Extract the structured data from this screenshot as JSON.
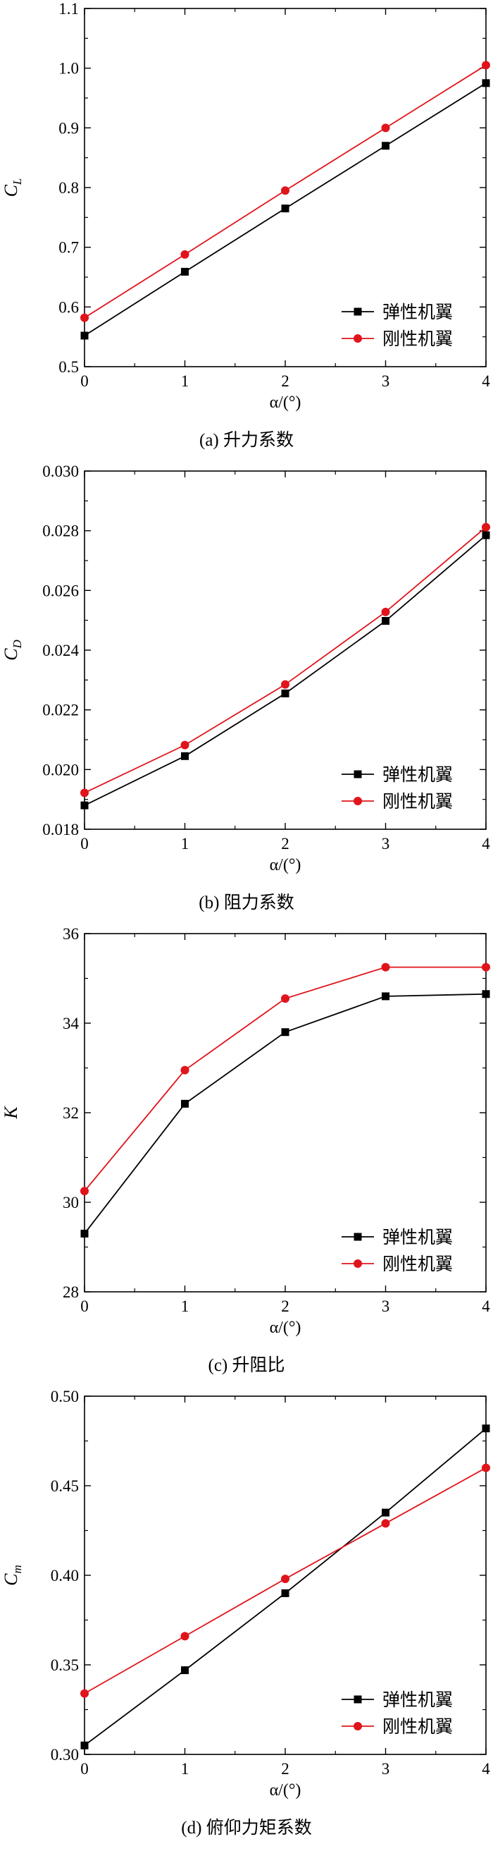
{
  "legend": {
    "elastic": "弹性机翼",
    "rigid": "刚性机翼"
  },
  "colors": {
    "elastic": "#000000",
    "rigid": "#e0141b",
    "axis": "#000000"
  },
  "chart_data": [
    {
      "type": "line",
      "caption": "(a) 升力系数",
      "xlabel": "α/(°)",
      "ylabel_main": "C",
      "ylabel_sub": "L",
      "xlim": [
        0,
        4
      ],
      "ylim": [
        0.5,
        1.1
      ],
      "xticks": [
        "0",
        "1",
        "2",
        "3",
        "4"
      ],
      "yticks": [
        "0.5",
        "0.6",
        "0.7",
        "0.8",
        "0.9",
        "1.0",
        "1.1"
      ],
      "x": [
        0,
        1,
        2,
        3,
        4
      ],
      "series": [
        {
          "name": "弹性机翼",
          "marker": "square",
          "values": [
            0.552,
            0.659,
            0.765,
            0.87,
            0.975
          ]
        },
        {
          "name": "刚性机翼",
          "marker": "circle",
          "values": [
            0.582,
            0.688,
            0.795,
            0.9,
            1.005
          ]
        }
      ],
      "legend_position": "bottom-right"
    },
    {
      "type": "line",
      "caption": "(b) 阻力系数",
      "xlabel": "α/(°)",
      "ylabel_main": "C",
      "ylabel_sub": "D",
      "xlim": [
        0,
        4
      ],
      "ylim": [
        0.018,
        0.03
      ],
      "xticks": [
        "0",
        "1",
        "2",
        "3",
        "4"
      ],
      "yticks": [
        "0.018",
        "0.020",
        "0.022",
        "0.024",
        "0.026",
        "0.028",
        "0.030"
      ],
      "x": [
        0,
        1,
        2,
        3,
        4
      ],
      "series": [
        {
          "name": "弹性机翼",
          "marker": "square",
          "values": [
            0.0188,
            0.02045,
            0.02255,
            0.02498,
            0.02785
          ]
        },
        {
          "name": "刚性机翼",
          "marker": "circle",
          "values": [
            0.01922,
            0.02082,
            0.02285,
            0.02528,
            0.02812
          ]
        }
      ],
      "legend_position": "bottom-right"
    },
    {
      "type": "line",
      "caption": "(c) 升阻比",
      "xlabel": "α/(°)",
      "ylabel_main": "K",
      "ylabel_sub": "",
      "xlim": [
        0,
        4
      ],
      "ylim": [
        28,
        36
      ],
      "xticks": [
        "0",
        "1",
        "2",
        "3",
        "4"
      ],
      "yticks": [
        "28",
        "30",
        "32",
        "34",
        "36"
      ],
      "x": [
        0,
        1,
        2,
        3,
        4
      ],
      "series": [
        {
          "name": "弹性机翼",
          "marker": "square",
          "values": [
            29.3,
            32.2,
            33.8,
            34.6,
            34.65
          ]
        },
        {
          "name": "刚性机翼",
          "marker": "circle",
          "values": [
            30.25,
            32.95,
            34.55,
            35.25,
            35.25
          ]
        }
      ],
      "legend_position": "bottom-right"
    },
    {
      "type": "line",
      "caption": "(d) 俯仰力矩系数",
      "xlabel": "α/(°)",
      "ylabel_main": "C",
      "ylabel_sub": "m",
      "xlim": [
        0,
        4
      ],
      "ylim": [
        0.3,
        0.5
      ],
      "xticks": [
        "0",
        "1",
        "2",
        "3",
        "4"
      ],
      "yticks": [
        "0.30",
        "0.35",
        "0.40",
        "0.45",
        "0.50"
      ],
      "x": [
        0,
        1,
        2,
        3,
        4
      ],
      "series": [
        {
          "name": "弹性机翼",
          "marker": "square",
          "values": [
            0.305,
            0.347,
            0.39,
            0.435,
            0.482
          ]
        },
        {
          "name": "刚性机翼",
          "marker": "circle",
          "values": [
            0.334,
            0.366,
            0.398,
            0.429,
            0.46
          ]
        }
      ],
      "legend_position": "bottom-right"
    }
  ]
}
